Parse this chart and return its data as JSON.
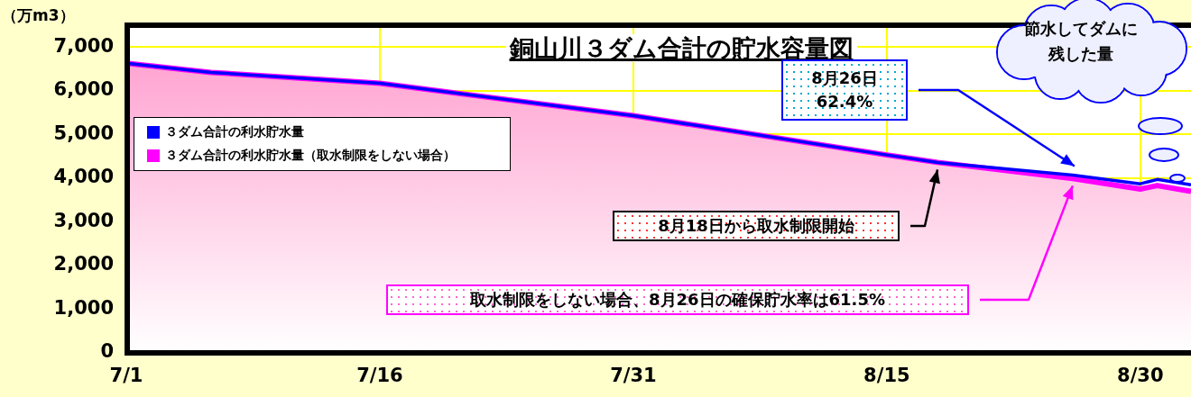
{
  "chart_data": {
    "type": "line",
    "title": "銅山川３ダム合計の貯水容量図",
    "ylabel": "（万m3）",
    "x": [
      "--07-01",
      "--07-06",
      "--07-16",
      "--07-31",
      "--08-15",
      "--08-18",
      "--08-26",
      "--08-30",
      "--08-31",
      "--09-02"
    ],
    "series": [
      {
        "name": "３ダム合計の利水貯水量",
        "type": "line",
        "color": "#0000ff",
        "values": [
          6630,
          6420,
          6170,
          5430,
          4530,
          4360,
          4070,
          3870,
          3970,
          3850
        ]
      },
      {
        "name": "３ダム合計の利水貯水量（取水制限をしない場合）",
        "type": "area",
        "color": "#ff00ff",
        "values": [
          6630,
          6420,
          6170,
          5430,
          4530,
          4360,
          3990,
          3750,
          3830,
          3700
        ]
      }
    ],
    "xlim": [
      "--07-01",
      "--09-02"
    ],
    "xticks": [
      {
        "value": "--07-01",
        "label": "7/1"
      },
      {
        "value": "--07-16",
        "label": "7/16"
      },
      {
        "value": "--07-31",
        "label": "7/31"
      },
      {
        "value": "--08-15",
        "label": "8/15"
      },
      {
        "value": "--08-30",
        "label": "8/30"
      }
    ],
    "ylim": [
      0,
      7500
    ],
    "yticks": [
      {
        "value": 0,
        "label": "0"
      },
      {
        "value": 1000,
        "label": "1,000"
      },
      {
        "value": 2000,
        "label": "2,000"
      },
      {
        "value": 3000,
        "label": "3,000"
      },
      {
        "value": 4000,
        "label": "4,000"
      },
      {
        "value": 5000,
        "label": "5,000"
      },
      {
        "value": 6000,
        "label": "6,000"
      },
      {
        "value": 7000,
        "label": "7,000"
      }
    ],
    "grid": true,
    "legend": "top left",
    "marker": "none",
    "line_style": "solid",
    "annotations": [
      "8月26日\n62.4%",
      "取水制限をしない場合、8月26日の確保貯水率は61.5%",
      "8月18日から取水制限開始",
      "節水してダムに残した量"
    ]
  }
}
